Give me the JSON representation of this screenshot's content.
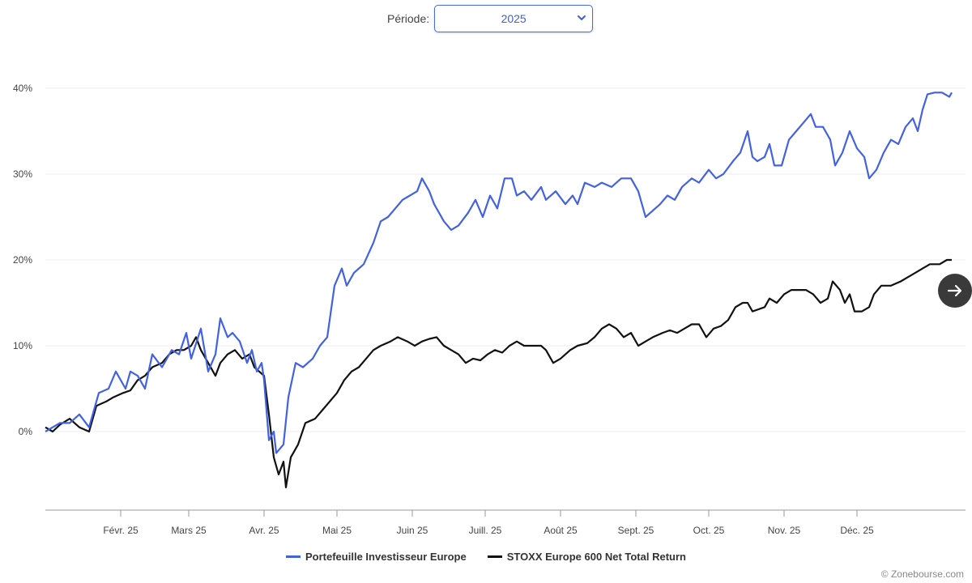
{
  "period": {
    "label": "Période:",
    "value": "2025"
  },
  "credit": "© Zonebourse.com",
  "colors": {
    "portfolio": "#4262e0",
    "index": "#111111",
    "grid": "#ececec",
    "axis": "#999999"
  },
  "icons": {
    "dropdown": "chevron-down-icon",
    "next": "arrow-right-icon"
  },
  "chart_data": {
    "type": "line",
    "title": "",
    "xlabel": "",
    "ylabel": "",
    "ylim": [
      -9,
      41
    ],
    "yticks": [
      0,
      10,
      20,
      30,
      40
    ],
    "ytick_labels": [
      "0%",
      "10%",
      "20%",
      "30%",
      "40%"
    ],
    "xlim": [
      0,
      364
    ],
    "xticks": [
      31,
      59,
      90,
      120,
      151,
      181,
      212,
      243,
      273,
      304,
      334
    ],
    "xtick_labels": [
      "Févr. 25",
      "Mars 25",
      "Avr. 25",
      "Mai 25",
      "Juin 25",
      "Juill. 25",
      "Août 25",
      "Sept. 25",
      "Oct. 25",
      "Nov. 25",
      "Déc. 25"
    ],
    "legend_position": "bottom",
    "grid": true,
    "series": [
      {
        "name": "Portefeuille Investisseur Europe",
        "color": "#4262e0",
        "points": [
          [
            0,
            0
          ],
          [
            6,
            1
          ],
          [
            10,
            1
          ],
          [
            14,
            2
          ],
          [
            18,
            0.5
          ],
          [
            22,
            4.5
          ],
          [
            26,
            5
          ],
          [
            29,
            7
          ],
          [
            33,
            5
          ],
          [
            35,
            7
          ],
          [
            38,
            6.5
          ],
          [
            41,
            5
          ],
          [
            44,
            9
          ],
          [
            48,
            7.5
          ],
          [
            52,
            9.5
          ],
          [
            55,
            9
          ],
          [
            58,
            11.5
          ],
          [
            60,
            8.5
          ],
          [
            64,
            12
          ],
          [
            67,
            7
          ],
          [
            70,
            9
          ],
          [
            72,
            13.2
          ],
          [
            75,
            11
          ],
          [
            77,
            11.5
          ],
          [
            80,
            10.5
          ],
          [
            83,
            8
          ],
          [
            85,
            9.5
          ],
          [
            87,
            7
          ],
          [
            89,
            8
          ],
          [
            90,
            6
          ],
          [
            92,
            -1
          ],
          [
            94,
            0
          ],
          [
            95,
            -2.5
          ],
          [
            98,
            -1.5
          ],
          [
            100,
            4
          ],
          [
            103,
            8
          ],
          [
            106,
            7.5
          ],
          [
            110,
            8.5
          ],
          [
            113,
            10
          ],
          [
            116,
            11
          ],
          [
            119,
            17
          ],
          [
            122,
            19
          ],
          [
            124,
            17
          ],
          [
            127,
            18.5
          ],
          [
            131,
            19.5
          ],
          [
            135,
            22
          ],
          [
            138,
            24.5
          ],
          [
            141,
            25
          ],
          [
            144,
            26
          ],
          [
            147,
            27
          ],
          [
            150,
            27.5
          ],
          [
            153,
            28
          ],
          [
            155,
            29.5
          ],
          [
            158,
            28
          ],
          [
            160,
            26.5
          ],
          [
            164,
            24.5
          ],
          [
            167,
            23.5
          ],
          [
            170,
            24
          ],
          [
            174,
            25.5
          ],
          [
            177,
            27
          ],
          [
            180,
            25
          ],
          [
            183,
            27.5
          ],
          [
            186,
            26
          ],
          [
            189,
            29.5
          ],
          [
            192,
            29.5
          ],
          [
            194,
            27.5
          ],
          [
            197,
            28
          ],
          [
            200,
            27
          ],
          [
            204,
            28.5
          ],
          [
            206,
            27
          ],
          [
            210,
            28
          ],
          [
            214,
            26.5
          ],
          [
            217,
            27.5
          ],
          [
            219,
            26.5
          ],
          [
            222,
            29
          ],
          [
            226,
            28.5
          ],
          [
            229,
            29
          ],
          [
            233,
            28.5
          ],
          [
            237,
            29.5
          ],
          [
            241,
            29.5
          ],
          [
            244,
            28
          ],
          [
            247,
            25
          ],
          [
            249,
            25.5
          ],
          [
            253,
            26.5
          ],
          [
            256,
            27.5
          ],
          [
            259,
            27
          ],
          [
            262,
            28.5
          ],
          [
            266,
            29.5
          ],
          [
            269,
            29
          ],
          [
            273,
            30.5
          ],
          [
            276,
            29.5
          ],
          [
            279,
            30
          ],
          [
            283,
            31.5
          ],
          [
            286,
            32.5
          ],
          [
            289,
            35
          ],
          [
            291,
            32
          ],
          [
            293,
            31.5
          ],
          [
            296,
            32
          ],
          [
            298,
            33.5
          ],
          [
            300,
            31
          ],
          [
            303,
            31
          ],
          [
            306,
            34
          ],
          [
            309,
            35
          ],
          [
            312,
            36
          ],
          [
            315,
            37
          ],
          [
            317,
            35.5
          ],
          [
            320,
            35.5
          ],
          [
            323,
            34
          ],
          [
            325,
            31
          ],
          [
            328,
            32.5
          ],
          [
            331,
            35
          ],
          [
            334,
            33
          ],
          [
            337,
            32
          ],
          [
            339,
            29.5
          ],
          [
            342,
            30.5
          ],
          [
            345,
            32.5
          ],
          [
            348,
            34
          ],
          [
            351,
            33.5
          ],
          [
            354,
            35.5
          ],
          [
            357,
            36.5
          ],
          [
            359,
            35
          ],
          [
            361,
            37.5
          ],
          [
            363,
            39.3
          ],
          [
            366,
            39.5
          ],
          [
            369,
            39.5
          ],
          [
            372,
            39
          ],
          [
            373,
            39.5
          ]
        ]
      },
      {
        "name": "STOXX Europe 600 Net Total Return",
        "color": "#111111",
        "points": [
          [
            0,
            0.5
          ],
          [
            3,
            0
          ],
          [
            6,
            0.8
          ],
          [
            10,
            1.5
          ],
          [
            14,
            0.5
          ],
          [
            18,
            0
          ],
          [
            21,
            3
          ],
          [
            25,
            3.5
          ],
          [
            28,
            4
          ],
          [
            32,
            4.5
          ],
          [
            35,
            4.8
          ],
          [
            38,
            6
          ],
          [
            41,
            6.5
          ],
          [
            44,
            7.5
          ],
          [
            48,
            8
          ],
          [
            51,
            9
          ],
          [
            54,
            9.5
          ],
          [
            57,
            9.5
          ],
          [
            60,
            10
          ],
          [
            62,
            11
          ],
          [
            64,
            9.5
          ],
          [
            67,
            8
          ],
          [
            70,
            6.5
          ],
          [
            72,
            8
          ],
          [
            75,
            9
          ],
          [
            78,
            9.5
          ],
          [
            81,
            8.5
          ],
          [
            84,
            9
          ],
          [
            86,
            7.5
          ],
          [
            88,
            7
          ],
          [
            90,
            6.5
          ],
          [
            92,
            2
          ],
          [
            94,
            -3
          ],
          [
            96,
            -5
          ],
          [
            98,
            -3.5
          ],
          [
            99,
            -6.5
          ],
          [
            101,
            -3
          ],
          [
            104,
            -1.5
          ],
          [
            107,
            1
          ],
          [
            111,
            1.5
          ],
          [
            114,
            2.5
          ],
          [
            117,
            3.5
          ],
          [
            120,
            4.5
          ],
          [
            123,
            6
          ],
          [
            126,
            7
          ],
          [
            129,
            7.5
          ],
          [
            132,
            8.5
          ],
          [
            135,
            9.5
          ],
          [
            138,
            10
          ],
          [
            142,
            10.5
          ],
          [
            145,
            11
          ],
          [
            149,
            10.5
          ],
          [
            152,
            10
          ],
          [
            155,
            10.5
          ],
          [
            158,
            10.8
          ],
          [
            161,
            11
          ],
          [
            164,
            10
          ],
          [
            167,
            9.5
          ],
          [
            170,
            9
          ],
          [
            173,
            8
          ],
          [
            176,
            8.5
          ],
          [
            179,
            8.3
          ],
          [
            182,
            9
          ],
          [
            185,
            9.5
          ],
          [
            188,
            9.2
          ],
          [
            191,
            10
          ],
          [
            194,
            10.5
          ],
          [
            197,
            10
          ],
          [
            200,
            10
          ],
          [
            204,
            10
          ],
          [
            206,
            9.5
          ],
          [
            209,
            8
          ],
          [
            212,
            8.5
          ],
          [
            216,
            9.5
          ],
          [
            219,
            10
          ],
          [
            223,
            10.3
          ],
          [
            226,
            11
          ],
          [
            229,
            12
          ],
          [
            232,
            12.5
          ],
          [
            235,
            12
          ],
          [
            238,
            11
          ],
          [
            241,
            11.5
          ],
          [
            244,
            10
          ],
          [
            247,
            10.5
          ],
          [
            250,
            11
          ],
          [
            254,
            11.5
          ],
          [
            257,
            11.8
          ],
          [
            260,
            11.5
          ],
          [
            263,
            12
          ],
          [
            266,
            12.5
          ],
          [
            269,
            12.5
          ],
          [
            272,
            11
          ],
          [
            275,
            12
          ],
          [
            278,
            12.3
          ],
          [
            281,
            13
          ],
          [
            284,
            14.5
          ],
          [
            287,
            15
          ],
          [
            289,
            15
          ],
          [
            291,
            14
          ],
          [
            293,
            14.2
          ],
          [
            296,
            14.5
          ],
          [
            298,
            15.5
          ],
          [
            301,
            15
          ],
          [
            304,
            16
          ],
          [
            307,
            16.5
          ],
          [
            310,
            16.5
          ],
          [
            313,
            16.5
          ],
          [
            316,
            16
          ],
          [
            319,
            15
          ],
          [
            322,
            15.5
          ],
          [
            324,
            17.5
          ],
          [
            327,
            16.5
          ],
          [
            329,
            15
          ],
          [
            331,
            16
          ],
          [
            333,
            14
          ],
          [
            336,
            14
          ],
          [
            339,
            14.5
          ],
          [
            341,
            16
          ],
          [
            344,
            17
          ],
          [
            348,
            17
          ],
          [
            352,
            17.5
          ],
          [
            355,
            18
          ],
          [
            358,
            18.5
          ],
          [
            361,
            19
          ],
          [
            364,
            19.5
          ],
          [
            368,
            19.5
          ],
          [
            371,
            20
          ],
          [
            373,
            20
          ]
        ]
      }
    ]
  }
}
